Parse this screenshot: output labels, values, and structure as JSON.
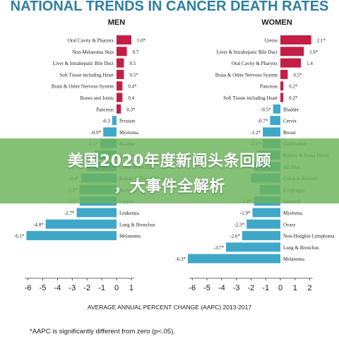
{
  "header": {
    "title": "NATIONAL TRENDS IN CANCER DEATH RATES"
  },
  "banner": {
    "line1": "美国2020年度新闻头条回顾",
    "line2": "，大事件全解析"
  },
  "footnote": "*AAPC is significantly different from zero (p<.05).",
  "colors": {
    "increase": "#c41e47",
    "decrease": "#3fa8c9",
    "banner": "#6cb45c",
    "title": "#2e7fa1"
  },
  "chart_data": [
    {
      "type": "bar",
      "panel_title": "MEN",
      "xlabel": "AVERAGE ANNUAL PERCENT CHANGE (AAPC) 2013-2017",
      "xlim": [
        -6.5,
        1.5
      ],
      "xticks": [
        "-6",
        "-5",
        "-4",
        "-3",
        "-2",
        "-1",
        "0",
        "1"
      ],
      "categories": [
        "Oral Cavity & Pharynx",
        "Non-Melanoma Skin",
        "Liver & Intrahepatic Bile Duct",
        "Soft Tissue including Heart",
        "Brain & Other Nervous System",
        "Bones and Joints",
        "Pancreas",
        "Prostate",
        "Myeloma",
        "Bladder",
        "Esophagus",
        "Colon & Rectum",
        "Kidney & Renal Pelvis",
        "Stomach",
        "Larynx",
        "Leukemia",
        "Lung & Bronchus",
        "Melanoma"
      ],
      "values": [
        1.0,
        0.7,
        0.5,
        0.5,
        0.4,
        0.4,
        0.3,
        -0.3,
        -0.9,
        -1.1,
        -1.5,
        -2.0,
        -2.4,
        -2.5,
        -2.5,
        -2.7,
        -4.8,
        -6.1
      ],
      "value_labels": [
        "1.0*",
        "0.7",
        "0.5",
        "0.5*",
        "0.4*",
        "0.4",
        "0.3*",
        "-0.3",
        "-0.9*",
        "-1.1*",
        "",
        "",
        "-2.4*",
        "-2.5*",
        "-2.5*",
        "-2.7*",
        "-4.8*",
        "-6.1*"
      ]
    },
    {
      "type": "bar",
      "panel_title": "WOMEN",
      "xlabel": "",
      "xlim": [
        -6.6,
        2.4
      ],
      "xticks": [
        "-6",
        "-5",
        "-4",
        "-3",
        "-2",
        "-1",
        "0",
        "1",
        "2"
      ],
      "categories": [
        "Uterus",
        "Liver & Intrahepatic Bile Duct",
        "Oral Cavity & Pharynx",
        "Brain & Other Nervous System",
        "Pancreas",
        "Soft Tissue including Heart",
        "Bladder",
        "Cervix",
        "Breast",
        "Gallbladder",
        "Kidney & Renal Pelvis",
        "All Sites",
        "Colon & Rectum",
        "Esophagus",
        "Stomach",
        "Myeloma",
        "Ovary",
        "Non-Hodgkin Lymphoma",
        "Lung & Bronchus",
        "Melanoma"
      ],
      "values": [
        2.1,
        1.6,
        1.4,
        0.5,
        0.2,
        0.2,
        -0.5,
        -0.7,
        -1.2,
        -1.2,
        -1.6,
        -1.8,
        -2.0,
        -1.4,
        -1.8,
        -1.9,
        -2.3,
        -2.6,
        -3.7,
        -6.3
      ],
      "value_labels": [
        "2.1*",
        "1.6*",
        "1.4",
        "0.5*",
        "0.2*",
        "0.2*",
        "-0.5*",
        "-0.7*",
        "-1.2*",
        "-1.2*",
        "",
        "",
        "",
        "",
        "-1.8*",
        "-1.9*",
        "-2.3*",
        "-2.6*",
        "-3.7*",
        "-6.3*"
      ]
    }
  ]
}
